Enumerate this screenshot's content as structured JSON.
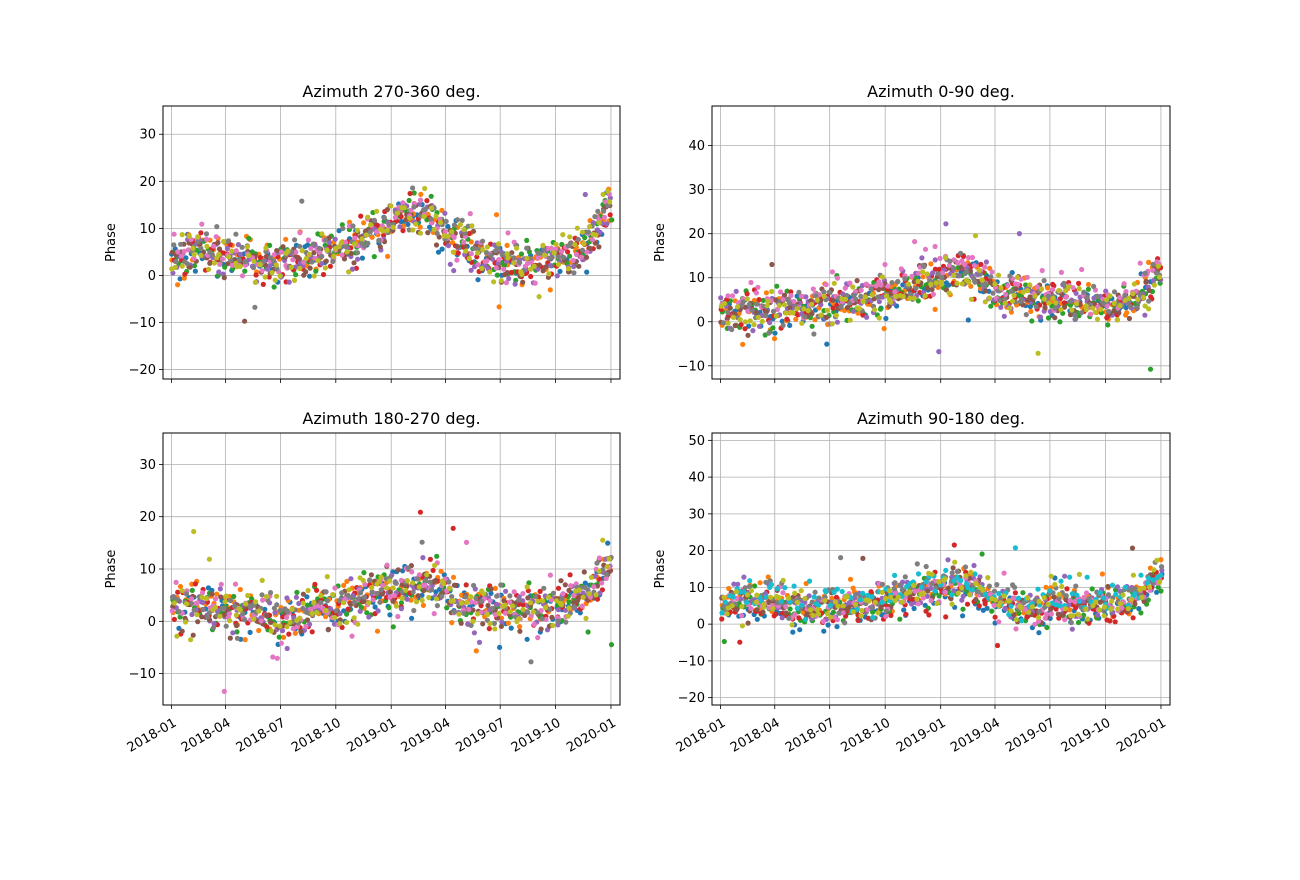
{
  "chart_data": [
    {
      "type": "scatter",
      "title": "Azimuth 270-360 deg.",
      "xlabel": "",
      "ylabel": "Phase",
      "ylim": [
        -22,
        36
      ],
      "yticks": [
        -20,
        -10,
        0,
        10,
        20,
        30
      ],
      "ytick_labels": [
        "−20",
        "−10",
        "0",
        "10",
        "20",
        "30"
      ],
      "xlim": [
        "2017-12-18",
        "2020-01-16"
      ],
      "xticks": [
        "2018-01",
        "2018-04",
        "2018-07",
        "2018-10",
        "2019-01",
        "2019-04",
        "2019-07",
        "2019-10",
        "2020-01"
      ],
      "show_xtick_labels": false,
      "grid": true,
      "baseline": [
        [
          0,
          3
        ],
        [
          50,
          5
        ],
        [
          100,
          3
        ],
        [
          180,
          2
        ],
        [
          240,
          4
        ],
        [
          300,
          6
        ],
        [
          330,
          8
        ],
        [
          380,
          12
        ],
        [
          420,
          13
        ],
        [
          460,
          8
        ],
        [
          520,
          3
        ],
        [
          580,
          2
        ],
        [
          650,
          3
        ],
        [
          690,
          5
        ],
        [
          720,
          12
        ],
        [
          728,
          14
        ]
      ],
      "series": [
        {
          "color": "#1f77b4",
          "offset": 0
        },
        {
          "color": "#ff7f0e",
          "offset": 1
        },
        {
          "color": "#2ca02c",
          "offset": 0.5
        },
        {
          "color": "#d62728",
          "offset": 0
        },
        {
          "color": "#9467bd",
          "offset": 0
        },
        {
          "color": "#8c564b",
          "offset": 0.5
        },
        {
          "color": "#e377c2",
          "offset": 1
        },
        {
          "color": "#7f7f7f",
          "offset": 1.5
        },
        {
          "color": "#bcbd22",
          "offset": 0.5
        }
      ]
    },
    {
      "type": "scatter",
      "title": "Azimuth 0-90 deg.",
      "xlabel": "",
      "ylabel": "Phase",
      "ylim": [
        -13,
        49
      ],
      "yticks": [
        -10,
        0,
        10,
        20,
        30,
        40
      ],
      "ytick_labels": [
        "−10",
        "0",
        "10",
        "20",
        "30",
        "40"
      ],
      "xlim": [
        "2017-12-18",
        "2020-01-16"
      ],
      "xticks": [
        "2018-01",
        "2018-04",
        "2018-07",
        "2018-10",
        "2019-01",
        "2019-04",
        "2019-07",
        "2019-10",
        "2020-01"
      ],
      "show_xtick_labels": false,
      "grid": true,
      "baseline": [
        [
          0,
          2
        ],
        [
          80,
          2
        ],
        [
          150,
          3
        ],
        [
          250,
          5
        ],
        [
          340,
          9
        ],
        [
          420,
          11
        ],
        [
          460,
          6
        ],
        [
          520,
          5
        ],
        [
          580,
          4
        ],
        [
          640,
          3
        ],
        [
          690,
          5
        ],
        [
          728,
          10
        ]
      ],
      "series": [
        {
          "color": "#1f77b4",
          "offset": 0
        },
        {
          "color": "#ff7f0e",
          "offset": 0
        },
        {
          "color": "#2ca02c",
          "offset": 0
        },
        {
          "color": "#d62728",
          "offset": 0.5
        },
        {
          "color": "#9467bd",
          "offset": 0
        },
        {
          "color": "#8c564b",
          "offset": 0.5
        },
        {
          "color": "#e377c2",
          "offset": 2.5
        },
        {
          "color": "#7f7f7f",
          "offset": 0.5
        },
        {
          "color": "#bcbd22",
          "offset": 0.5
        }
      ]
    },
    {
      "type": "scatter",
      "title": "Azimuth 180-270 deg.",
      "xlabel": "",
      "ylabel": "Phase",
      "ylim": [
        -16,
        36
      ],
      "yticks": [
        -10,
        0,
        10,
        20,
        30
      ],
      "ytick_labels": [
        "−10",
        "0",
        "10",
        "20",
        "30"
      ],
      "xlim": [
        "2017-12-18",
        "2020-01-16"
      ],
      "xticks": [
        "2018-01",
        "2018-04",
        "2018-07",
        "2018-10",
        "2019-01",
        "2019-04",
        "2019-07",
        "2019-10",
        "2020-01"
      ],
      "show_xtick_labels": true,
      "grid": true,
      "baseline": [
        [
          0,
          3
        ],
        [
          60,
          3
        ],
        [
          120,
          1
        ],
        [
          180,
          0
        ],
        [
          250,
          2
        ],
        [
          330,
          5
        ],
        [
          380,
          6
        ],
        [
          430,
          7
        ],
        [
          470,
          4
        ],
        [
          520,
          2
        ],
        [
          600,
          2
        ],
        [
          660,
          3
        ],
        [
          700,
          6
        ],
        [
          728,
          10
        ]
      ],
      "series": [
        {
          "color": "#1f77b4",
          "offset": 0
        },
        {
          "color": "#ff7f0e",
          "offset": 0.5
        },
        {
          "color": "#2ca02c",
          "offset": 0.5
        },
        {
          "color": "#d62728",
          "offset": 0
        },
        {
          "color": "#9467bd",
          "offset": 0
        },
        {
          "color": "#8c564b",
          "offset": 0
        },
        {
          "color": "#e377c2",
          "offset": 0.5
        },
        {
          "color": "#7f7f7f",
          "offset": 0.5
        },
        {
          "color": "#bcbd22",
          "offset": 0.5
        }
      ]
    },
    {
      "type": "scatter",
      "title": "Azimuth 90-180 deg.",
      "xlabel": "",
      "ylabel": "Phase",
      "ylim": [
        -22,
        52
      ],
      "yticks": [
        -20,
        -10,
        0,
        10,
        20,
        30,
        40,
        50
      ],
      "ytick_labels": [
        "−20",
        "−10",
        "0",
        "10",
        "20",
        "30",
        "40",
        "50"
      ],
      "xlim": [
        "2017-12-18",
        "2020-01-16"
      ],
      "xticks": [
        "2018-01",
        "2018-04",
        "2018-07",
        "2018-10",
        "2019-01",
        "2019-04",
        "2019-07",
        "2019-10",
        "2020-01"
      ],
      "show_xtick_labels": true,
      "grid": true,
      "baseline": [
        [
          0,
          5
        ],
        [
          80,
          5
        ],
        [
          150,
          3
        ],
        [
          250,
          4
        ],
        [
          330,
          8
        ],
        [
          400,
          10
        ],
        [
          460,
          5
        ],
        [
          520,
          3
        ],
        [
          600,
          4
        ],
        [
          680,
          5
        ],
        [
          728,
          12
        ]
      ],
      "series": [
        {
          "color": "#1f77b4",
          "offset": -1
        },
        {
          "color": "#ff7f0e",
          "offset": 2
        },
        {
          "color": "#2ca02c",
          "offset": 0
        },
        {
          "color": "#d62728",
          "offset": 0
        },
        {
          "color": "#9467bd",
          "offset": 2
        },
        {
          "color": "#8c564b",
          "offset": 1
        },
        {
          "color": "#e377c2",
          "offset": 1
        },
        {
          "color": "#7f7f7f",
          "offset": 3
        },
        {
          "color": "#17becf",
          "offset": 3
        },
        {
          "color": "#bcbd22",
          "offset": 1
        }
      ]
    }
  ]
}
